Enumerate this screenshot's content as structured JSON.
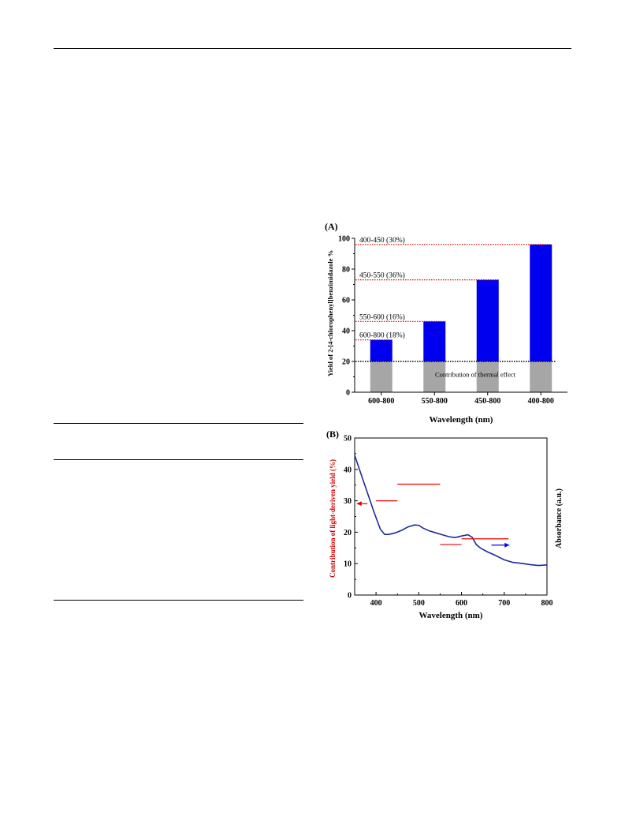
{
  "chart_data": [
    {
      "panel_label": "(A)",
      "type": "bar",
      "categories": [
        "600-800",
        "550-800",
        "450-800",
        "400-800"
      ],
      "series": [
        {
          "values": [
            20,
            20,
            20,
            20
          ]
        },
        {
          "values": [
            14,
            26,
            53,
            76
          ]
        }
      ],
      "totals": [
        34,
        46,
        73,
        96
      ],
      "xlabel": "Wavelength (nm)",
      "ylabel": "Yield of 2-[4-chlorophenyl]benzimidazole %",
      "ylim": [
        0,
        100
      ],
      "yticks": [
        0,
        20,
        40,
        60,
        80,
        100
      ],
      "annotations": [
        {
          "text": "400-450 (30%)",
          "y": 96
        },
        {
          "text": "450-550 (36%)",
          "y": 73
        },
        {
          "text": "550-600 (16%)",
          "y": 46
        },
        {
          "text": "600-800 (18%)",
          "y": 34
        },
        {
          "text": "Contribution of thermal effect",
          "y": 20
        }
      ],
      "colors": {
        "thermal": "#a6a6a6",
        "light": "#0000ee",
        "dotted": "#dd0000",
        "thermal_line": "#000000"
      }
    },
    {
      "panel_label": "(B)",
      "type": "line",
      "xlabel": "Wavelength (nm)",
      "ylabel_left": "Contribution of light-deriven yield (%)",
      "ylabel_right": "Absorbance (a.u.)",
      "xlim": [
        350,
        800
      ],
      "ylim": [
        0,
        50
      ],
      "xticks": [
        400,
        500,
        600,
        700,
        800
      ],
      "yticks": [
        0,
        10,
        20,
        30,
        40,
        50
      ],
      "series": [
        {
          "x": [
            350,
            365,
            380,
            395,
            410,
            420,
            430,
            445,
            460,
            475,
            490,
            500,
            510,
            525,
            540,
            555,
            570,
            585,
            600,
            615,
            625,
            635,
            645,
            660,
            680,
            700,
            720,
            740,
            760,
            780,
            800
          ],
          "y": [
            44.5,
            38.5,
            32.5,
            26.5,
            21.0,
            19.3,
            19.3,
            19.8,
            20.6,
            21.7,
            22.3,
            22.2,
            21.3,
            20.4,
            19.8,
            19.2,
            18.6,
            18.3,
            18.8,
            19.2,
            18.4,
            16.0,
            14.9,
            13.8,
            12.6,
            11.2,
            10.4,
            10.1,
            9.7,
            9.4,
            9.6
          ],
          "color": "#1f2a9a"
        }
      ],
      "contribution_segments": [
        {
          "x": [
            400,
            450
          ],
          "y": 30
        },
        {
          "x": [
            450,
            550
          ],
          "y": 35.3
        },
        {
          "x": [
            550,
            600
          ],
          "y": 16.1
        },
        {
          "x": [
            600,
            710
          ],
          "y": 17.9
        }
      ],
      "arrows": [
        {
          "x": [
            380,
            355
          ],
          "y": 29.1,
          "color": "#dd0000"
        },
        {
          "x": [
            670,
            712
          ],
          "y": 15.9,
          "color": "#0000ee"
        }
      ],
      "colors": {
        "segments": "#ee0000",
        "left_label": "#dd0000"
      }
    }
  ]
}
